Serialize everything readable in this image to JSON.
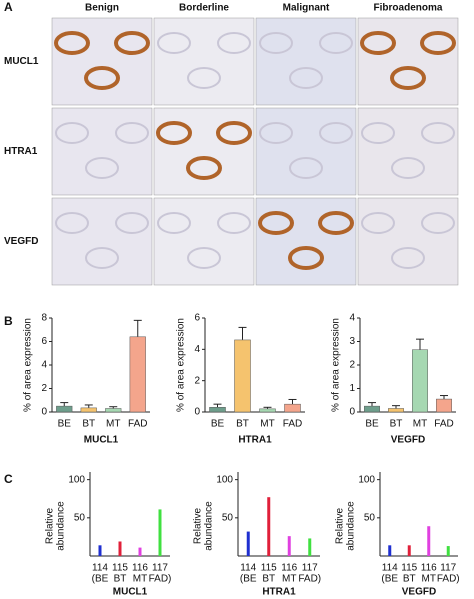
{
  "panel_labels": [
    "A",
    "B",
    "C"
  ],
  "panel_a": {
    "columns": [
      "Benign",
      "Borderline",
      "Malignant",
      "Fibroadenoma"
    ],
    "rows": [
      "MUCL1",
      "HTRA1",
      "VEGFD"
    ]
  },
  "chart_data": [
    {
      "type": "bar",
      "ylabel": "% of area expression",
      "xlabel": "MUCL1",
      "categories": [
        "BE",
        "BT",
        "MT",
        "FAD"
      ],
      "values": [
        0.5,
        0.35,
        0.3,
        6.4
      ],
      "errors": [
        0.3,
        0.25,
        0.15,
        1.4
      ],
      "colors": [
        "#6e9e8c",
        "#f5c36e",
        "#a6d8b2",
        "#f4a58c"
      ],
      "ylim": [
        0,
        8
      ],
      "yticks": [
        0,
        2,
        4,
        6,
        8
      ]
    },
    {
      "type": "bar",
      "ylabel": "% of area expression",
      "xlabel": "HTRA1",
      "categories": [
        "BE",
        "BT",
        "MT",
        "FAD"
      ],
      "values": [
        0.3,
        4.6,
        0.2,
        0.5
      ],
      "errors": [
        0.2,
        0.8,
        0.1,
        0.3
      ],
      "colors": [
        "#6e9e8c",
        "#f5c36e",
        "#a6d8b2",
        "#f4a58c"
      ],
      "ylim": [
        0,
        6
      ],
      "yticks": [
        0,
        2,
        4,
        6
      ]
    },
    {
      "type": "bar",
      "ylabel": "% of area expression",
      "xlabel": "VEGFD",
      "categories": [
        "BE",
        "BT",
        "MT",
        "FAD"
      ],
      "values": [
        0.25,
        0.15,
        2.65,
        0.55
      ],
      "errors": [
        0.15,
        0.12,
        0.45,
        0.15
      ],
      "colors": [
        "#6e9e8c",
        "#f5c36e",
        "#a6d8b2",
        "#f4a58c"
      ],
      "ylim": [
        0,
        4
      ],
      "yticks": [
        0,
        1,
        2,
        3,
        4
      ]
    },
    {
      "type": "thinbar",
      "ylabel": [
        "Relative",
        "abundance"
      ],
      "xlabel": "MUCL1",
      "categories": [
        "114",
        "115",
        "116",
        "117"
      ],
      "category_notes": [
        "(BE",
        "BT",
        "MT",
        "FAD)"
      ],
      "values": [
        14,
        19,
        11,
        61
      ],
      "colors": [
        "#1f2fd0",
        "#e0203a",
        "#e040e0",
        "#40e040"
      ],
      "ylim": [
        0,
        110
      ],
      "yticks": [
        50,
        100
      ]
    },
    {
      "type": "thinbar",
      "ylabel": [
        "Relative",
        "abundance"
      ],
      "xlabel": "HTRA1",
      "categories": [
        "114",
        "115",
        "116",
        "117"
      ],
      "category_notes": [
        "(BE",
        "BT",
        "MT",
        "FAD)"
      ],
      "values": [
        32,
        77,
        26,
        23
      ],
      "colors": [
        "#1f2fd0",
        "#e0203a",
        "#e040e0",
        "#40e040"
      ],
      "ylim": [
        0,
        110
      ],
      "yticks": [
        50,
        100
      ]
    },
    {
      "type": "thinbar",
      "ylabel": [
        "Relative",
        "abundance"
      ],
      "xlabel": "VEGFD",
      "categories": [
        "114",
        "115",
        "116",
        "117"
      ],
      "category_notes": [
        "(BE",
        "BT",
        "MT",
        "FAD)"
      ],
      "values": [
        14,
        14,
        39,
        13
      ],
      "colors": [
        "#1f2fd0",
        "#e0203a",
        "#e040e0",
        "#40e040"
      ],
      "ylim": [
        0,
        110
      ],
      "yticks": [
        50,
        100
      ]
    }
  ]
}
